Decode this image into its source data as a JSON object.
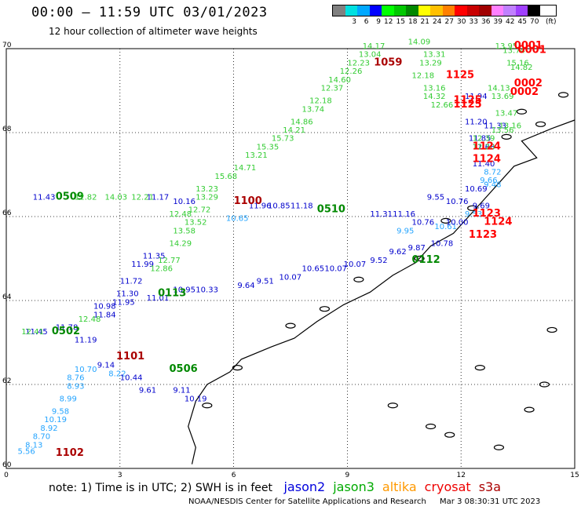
{
  "header": {
    "title": "00:00 – 11:59 UTC 03/01/2023",
    "subtitle": "12 hour collection of altimeter wave heights"
  },
  "colorbar": {
    "unit": "(ft)",
    "labels": [
      "",
      "3",
      "6",
      "9",
      "12",
      "15",
      "18",
      "21",
      "24",
      "27",
      "30",
      "33",
      "36",
      "39",
      "42",
      "45",
      "70"
    ],
    "colors": [
      "#808080",
      "#00e0e0",
      "#00a8ff",
      "#0000ff",
      "#00ff00",
      "#00c800",
      "#008800",
      "#ffff00",
      "#ffc000",
      "#ff8000",
      "#ff0000",
      "#c80000",
      "#a00000",
      "#ff80ff",
      "#c080ff",
      "#a040ff",
      "#000000"
    ]
  },
  "map": {
    "lon_range": [
      0,
      15
    ],
    "lat_range": [
      60,
      70
    ],
    "x_ticks": [
      "0",
      "3",
      "6",
      "9",
      "12",
      "15"
    ],
    "y_ticks": [
      "60",
      "62",
      "64",
      "66",
      "68",
      "70"
    ],
    "grid": true
  },
  "tracks": [
    {
      "mission": "jason2",
      "color": "#24a4ff",
      "points": [
        {
          "lon": 0.3,
          "lat": 60.35,
          "v": "5.56"
        },
        {
          "lon": 0.5,
          "lat": 60.5,
          "v": "8.13"
        },
        {
          "lon": 0.7,
          "lat": 60.7,
          "v": "8.70"
        },
        {
          "lon": 0.9,
          "lat": 60.9,
          "v": "8.92"
        },
        {
          "lon": 1.0,
          "lat": 61.1,
          "v": "10.19"
        },
        {
          "lon": 1.2,
          "lat": 61.3,
          "v": "9.58"
        },
        {
          "lon": 1.4,
          "lat": 61.6,
          "v": "8.99"
        },
        {
          "lon": 1.6,
          "lat": 61.9,
          "v": "8.93"
        },
        {
          "lon": 1.6,
          "lat": 62.1,
          "v": "8.76"
        },
        {
          "lon": 1.8,
          "lat": 62.3,
          "v": "10.70"
        },
        {
          "lon": 2.7,
          "lat": 62.2,
          "v": "8.22"
        },
        {
          "lon": 5.8,
          "lat": 65.9,
          "v": "10.65"
        },
        {
          "lon": 10.3,
          "lat": 65.6,
          "v": "9.95"
        },
        {
          "lon": 11.3,
          "lat": 65.7,
          "v": "10.61"
        },
        {
          "lon": 12.1,
          "lat": 66.0,
          "v": "9.53"
        },
        {
          "lon": 12.5,
          "lat": 66.8,
          "v": "9.66"
        },
        {
          "lon": 12.6,
          "lat": 67.0,
          "v": "8.72"
        },
        {
          "lon": 12.6,
          "lat": 66.7,
          "v": "9.48"
        }
      ]
    },
    {
      "mission": "jason2-dk",
      "color": "#0000cc",
      "points": [
        {
          "lon": 0.5,
          "lat": 63.2,
          "v": "11.45"
        },
        {
          "lon": 1.3,
          "lat": 63.3,
          "v": "11.78"
        },
        {
          "lon": 1.8,
          "lat": 63.0,
          "v": "11.19"
        },
        {
          "lon": 2.3,
          "lat": 63.6,
          "v": "11.84"
        },
        {
          "lon": 2.3,
          "lat": 63.8,
          "v": "10.98"
        },
        {
          "lon": 2.8,
          "lat": 63.9,
          "v": "11.95"
        },
        {
          "lon": 2.9,
          "lat": 64.1,
          "v": "11.30"
        },
        {
          "lon": 3.0,
          "lat": 64.4,
          "v": "11.72"
        },
        {
          "lon": 3.3,
          "lat": 64.8,
          "v": "11.99"
        },
        {
          "lon": 3.6,
          "lat": 65.0,
          "v": "11.35"
        },
        {
          "lon": 2.4,
          "lat": 62.4,
          "v": "9.14"
        },
        {
          "lon": 3.0,
          "lat": 62.1,
          "v": "10.44"
        },
        {
          "lon": 3.5,
          "lat": 61.8,
          "v": "9.61"
        },
        {
          "lon": 4.4,
          "lat": 61.8,
          "v": "9.11"
        },
        {
          "lon": 4.7,
          "lat": 61.6,
          "v": "10.19"
        },
        {
          "lon": 3.7,
          "lat": 64.0,
          "v": "11.01"
        },
        {
          "lon": 4.4,
          "lat": 64.2,
          "v": "10.95"
        },
        {
          "lon": 5.0,
          "lat": 64.2,
          "v": "10.33"
        },
        {
          "lon": 6.1,
          "lat": 64.3,
          "v": "9.64"
        },
        {
          "lon": 6.6,
          "lat": 64.4,
          "v": "9.51"
        },
        {
          "lon": 7.2,
          "lat": 64.5,
          "v": "10.07"
        },
        {
          "lon": 7.8,
          "lat": 64.7,
          "v": "10.65"
        },
        {
          "lon": 8.4,
          "lat": 64.7,
          "v": "10.07"
        },
        {
          "lon": 8.9,
          "lat": 64.8,
          "v": "10.07"
        },
        {
          "lon": 9.6,
          "lat": 64.9,
          "v": "9.52"
        },
        {
          "lon": 10.1,
          "lat": 65.1,
          "v": "9.62"
        },
        {
          "lon": 10.6,
          "lat": 65.2,
          "v": "9.87"
        },
        {
          "lon": 11.2,
          "lat": 65.3,
          "v": "10.78"
        },
        {
          "lon": 11.6,
          "lat": 65.8,
          "v": "10.00"
        },
        {
          "lon": 11.1,
          "lat": 66.4,
          "v": "9.55"
        },
        {
          "lon": 11.6,
          "lat": 66.3,
          "v": "10.76"
        },
        {
          "lon": 12.3,
          "lat": 66.2,
          "v": "9.69"
        },
        {
          "lon": 12.1,
          "lat": 66.6,
          "v": "10.69"
        },
        {
          "lon": 12.3,
          "lat": 67.2,
          "v": "11.40"
        },
        {
          "lon": 12.3,
          "lat": 67.6,
          "v": "11.68"
        },
        {
          "lon": 12.2,
          "lat": 67.8,
          "v": "11.85"
        },
        {
          "lon": 12.1,
          "lat": 68.8,
          "v": "11.94"
        },
        {
          "lon": 12.1,
          "lat": 68.2,
          "v": "11.20"
        },
        {
          "lon": 12.6,
          "lat": 68.1,
          "v": "11.33"
        },
        {
          "lon": 0.7,
          "lat": 66.4,
          "v": "11.43"
        },
        {
          "lon": 3.7,
          "lat": 66.4,
          "v": "11.17"
        },
        {
          "lon": 4.4,
          "lat": 66.3,
          "v": "10.16"
        },
        {
          "lon": 6.4,
          "lat": 66.2,
          "v": "11.96"
        },
        {
          "lon": 6.9,
          "lat": 66.2,
          "v": "10.85"
        },
        {
          "lon": 7.5,
          "lat": 66.2,
          "v": "11.18"
        },
        {
          "lon": 9.6,
          "lat": 66.0,
          "v": "11.31"
        },
        {
          "lon": 10.2,
          "lat": 66.0,
          "v": "11.16"
        },
        {
          "lon": 10.7,
          "lat": 65.8,
          "v": "10.76"
        }
      ]
    },
    {
      "mission": "jason3",
      "color": "#008800",
      "points": [
        {
          "lon": 1.3,
          "lat": 66.4,
          "v": "0509"
        },
        {
          "lon": 1.2,
          "lat": 63.2,
          "v": "0502"
        },
        {
          "lon": 4.0,
          "lat": 64.1,
          "v": "0113"
        },
        {
          "lon": 4.3,
          "lat": 62.3,
          "v": "0506"
        },
        {
          "lon": 8.2,
          "lat": 66.1,
          "v": "0510"
        },
        {
          "lon": 10.7,
          "lat": 64.9,
          "v": "0112"
        }
      ]
    },
    {
      "mission": "jason3-lt",
      "color": "#33cc33",
      "points": [
        {
          "lon": 1.8,
          "lat": 66.4,
          "v": "12.82"
        },
        {
          "lon": 2.6,
          "lat": 66.4,
          "v": "14.03"
        },
        {
          "lon": 3.3,
          "lat": 66.4,
          "v": "12.21"
        },
        {
          "lon": 4.8,
          "lat": 66.1,
          "v": "12.72"
        },
        {
          "lon": 4.7,
          "lat": 65.8,
          "v": "13.52"
        },
        {
          "lon": 4.4,
          "lat": 65.6,
          "v": "13.58"
        },
        {
          "lon": 4.3,
          "lat": 65.3,
          "v": "14.29"
        },
        {
          "lon": 4.0,
          "lat": 64.9,
          "v": "12.77"
        },
        {
          "lon": 3.8,
          "lat": 64.7,
          "v": "12.86"
        },
        {
          "lon": 5.0,
          "lat": 66.4,
          "v": "13.29"
        },
        {
          "lon": 5.0,
          "lat": 66.6,
          "v": "13.23"
        },
        {
          "lon": 5.5,
          "lat": 66.9,
          "v": "15.68"
        },
        {
          "lon": 6.0,
          "lat": 67.1,
          "v": "14.71"
        },
        {
          "lon": 6.3,
          "lat": 67.4,
          "v": "13.21"
        },
        {
          "lon": 6.6,
          "lat": 67.6,
          "v": "15.35"
        },
        {
          "lon": 7.0,
          "lat": 67.8,
          "v": "15.73"
        },
        {
          "lon": 7.3,
          "lat": 68.0,
          "v": "14.21"
        },
        {
          "lon": 7.5,
          "lat": 68.2,
          "v": "14.86"
        },
        {
          "lon": 7.8,
          "lat": 68.5,
          "v": "13.74"
        },
        {
          "lon": 8.0,
          "lat": 68.7,
          "v": "12.18"
        },
        {
          "lon": 8.3,
          "lat": 69.0,
          "v": "12.37"
        },
        {
          "lon": 8.5,
          "lat": 69.2,
          "v": "14.60"
        },
        {
          "lon": 8.8,
          "lat": 69.4,
          "v": "12.26"
        },
        {
          "lon": 9.0,
          "lat": 69.6,
          "v": "12.23"
        },
        {
          "lon": 9.3,
          "lat": 69.8,
          "v": "13.04"
        },
        {
          "lon": 9.4,
          "lat": 70.0,
          "v": "14.17"
        },
        {
          "lon": 10.6,
          "lat": 70.1,
          "v": "14.09"
        },
        {
          "lon": 11.0,
          "lat": 69.8,
          "v": "13.31"
        },
        {
          "lon": 10.9,
          "lat": 69.6,
          "v": "13.29"
        },
        {
          "lon": 10.7,
          "lat": 69.3,
          "v": "12.18"
        },
        {
          "lon": 11.0,
          "lat": 69.0,
          "v": "13.16"
        },
        {
          "lon": 11.0,
          "lat": 68.8,
          "v": "14.32"
        },
        {
          "lon": 11.2,
          "lat": 68.6,
          "v": "12.66"
        },
        {
          "lon": 12.3,
          "lat": 67.8,
          "v": "12.39"
        },
        {
          "lon": 12.3,
          "lat": 67.6,
          "v": "12.20"
        },
        {
          "lon": 12.7,
          "lat": 69.0,
          "v": "14.13"
        },
        {
          "lon": 12.8,
          "lat": 68.8,
          "v": "13.69"
        },
        {
          "lon": 12.9,
          "lat": 68.4,
          "v": "13.47"
        },
        {
          "lon": 13.0,
          "lat": 68.1,
          "v": "13.16"
        },
        {
          "lon": 12.8,
          "lat": 68.0,
          "v": "13.56"
        },
        {
          "lon": 13.2,
          "lat": 69.6,
          "v": "15.16"
        },
        {
          "lon": 13.3,
          "lat": 69.5,
          "v": "14.82"
        },
        {
          "lon": 12.9,
          "lat": 70.0,
          "v": "13.95"
        },
        {
          "lon": 13.1,
          "lat": 69.9,
          "v": "13.74"
        },
        {
          "lon": 0.4,
          "lat": 63.2,
          "v": "12.41"
        },
        {
          "lon": 1.9,
          "lat": 63.5,
          "v": "12.48"
        },
        {
          "lon": 4.3,
          "lat": 66.0,
          "v": "12.48"
        }
      ]
    },
    {
      "mission": "s3a",
      "color": "#aa0000",
      "points": [
        {
          "lon": 1.3,
          "lat": 60.3,
          "v": "1102"
        },
        {
          "lon": 2.9,
          "lat": 62.6,
          "v": "1101"
        },
        {
          "lon": 6.0,
          "lat": 66.3,
          "v": "1100"
        },
        {
          "lon": 9.7,
          "lat": 69.6,
          "v": "1059"
        }
      ]
    },
    {
      "mission": "cryosat",
      "color": "#ff0000",
      "points": [
        {
          "lon": 11.6,
          "lat": 69.3,
          "v": "1125"
        },
        {
          "lon": 11.8,
          "lat": 68.7,
          "v": "1125"
        },
        {
          "lon": 11.8,
          "lat": 68.6,
          "v": "1125"
        },
        {
          "lon": 12.3,
          "lat": 67.6,
          "v": "1124"
        },
        {
          "lon": 12.3,
          "lat": 67.3,
          "v": "1124"
        },
        {
          "lon": 12.3,
          "lat": 66.0,
          "v": "1123"
        },
        {
          "lon": 12.6,
          "lat": 65.8,
          "v": "1124"
        },
        {
          "lon": 12.2,
          "lat": 65.5,
          "v": "1123"
        },
        {
          "lon": 13.4,
          "lat": 70.0,
          "v": "0001"
        },
        {
          "lon": 13.5,
          "lat": 69.9,
          "v": "0001"
        },
        {
          "lon": 13.4,
          "lat": 69.1,
          "v": "0002"
        },
        {
          "lon": 13.3,
          "lat": 68.9,
          "v": "0002"
        }
      ]
    }
  ],
  "legend": {
    "note": "note: 1) Time is in UTC; 2) SWH is in feet",
    "missions": [
      {
        "label": "jason2",
        "color": "#0000dd"
      },
      {
        "label": "jason3",
        "color": "#00aa00"
      },
      {
        "label": "altika",
        "color": "#ff9900"
      },
      {
        "label": "cryosat",
        "color": "#ee0000"
      },
      {
        "label": "s3a",
        "color": "#aa0000"
      }
    ]
  },
  "footer": {
    "credit": "NOAA/NESDIS Center for Satellite Applications and Research",
    "timestamp": "Mar  3 08:30:31 UTC 2023"
  }
}
